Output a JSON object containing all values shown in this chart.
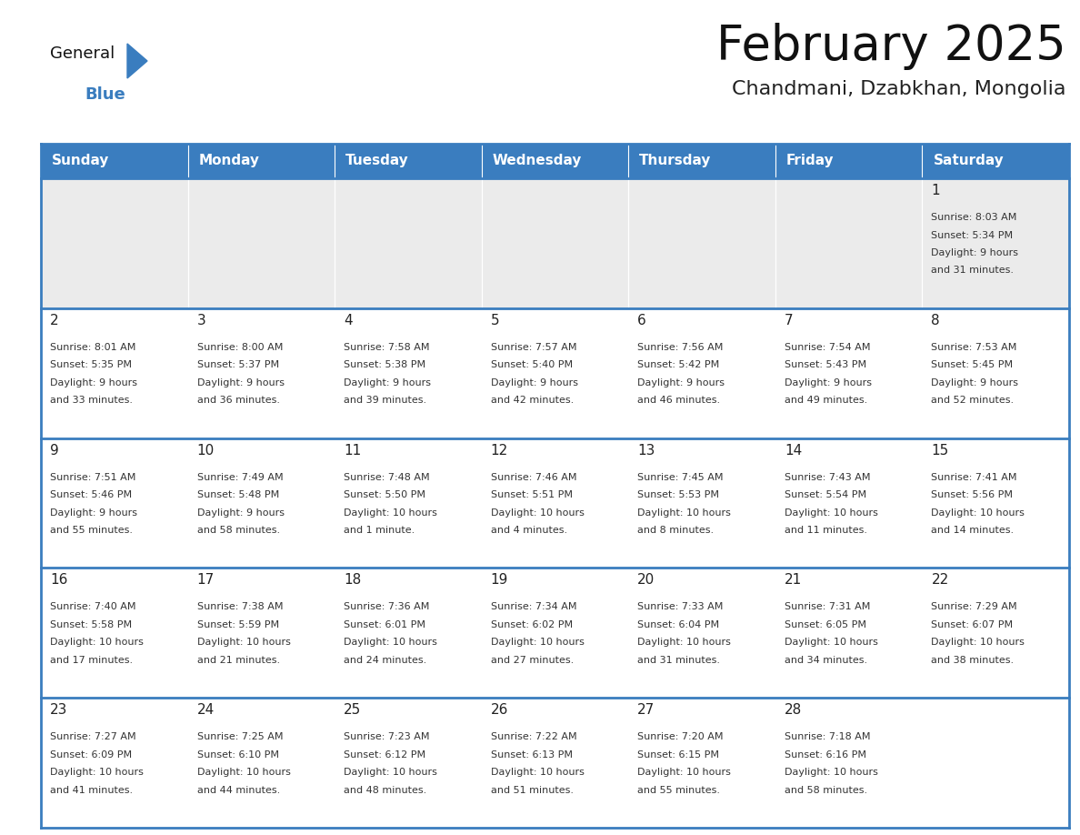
{
  "title": "February 2025",
  "subtitle": "Chandmani, Dzabkhan, Mongolia",
  "days_of_week": [
    "Sunday",
    "Monday",
    "Tuesday",
    "Wednesday",
    "Thursday",
    "Friday",
    "Saturday"
  ],
  "header_bg": "#3a7dbf",
  "header_text": "#ffffff",
  "cell_bg_gray": "#ebebeb",
  "cell_bg_white": "#ffffff",
  "separator_color": "#3a7dbf",
  "day_number_color": "#222222",
  "info_text_color": "#333333",
  "title_color": "#111111",
  "subtitle_color": "#222222",
  "border_color": "#3a7dbf",
  "calendar_data": [
    [
      {
        "day": null,
        "sunrise": null,
        "sunset": null,
        "daylight": null
      },
      {
        "day": null,
        "sunrise": null,
        "sunset": null,
        "daylight": null
      },
      {
        "day": null,
        "sunrise": null,
        "sunset": null,
        "daylight": null
      },
      {
        "day": null,
        "sunrise": null,
        "sunset": null,
        "daylight": null
      },
      {
        "day": null,
        "sunrise": null,
        "sunset": null,
        "daylight": null
      },
      {
        "day": null,
        "sunrise": null,
        "sunset": null,
        "daylight": null
      },
      {
        "day": 1,
        "sunrise": "8:03 AM",
        "sunset": "5:34 PM",
        "daylight": "9 hours\nand 31 minutes."
      }
    ],
    [
      {
        "day": 2,
        "sunrise": "8:01 AM",
        "sunset": "5:35 PM",
        "daylight": "9 hours\nand 33 minutes."
      },
      {
        "day": 3,
        "sunrise": "8:00 AM",
        "sunset": "5:37 PM",
        "daylight": "9 hours\nand 36 minutes."
      },
      {
        "day": 4,
        "sunrise": "7:58 AM",
        "sunset": "5:38 PM",
        "daylight": "9 hours\nand 39 minutes."
      },
      {
        "day": 5,
        "sunrise": "7:57 AM",
        "sunset": "5:40 PM",
        "daylight": "9 hours\nand 42 minutes."
      },
      {
        "day": 6,
        "sunrise": "7:56 AM",
        "sunset": "5:42 PM",
        "daylight": "9 hours\nand 46 minutes."
      },
      {
        "day": 7,
        "sunrise": "7:54 AM",
        "sunset": "5:43 PM",
        "daylight": "9 hours\nand 49 minutes."
      },
      {
        "day": 8,
        "sunrise": "7:53 AM",
        "sunset": "5:45 PM",
        "daylight": "9 hours\nand 52 minutes."
      }
    ],
    [
      {
        "day": 9,
        "sunrise": "7:51 AM",
        "sunset": "5:46 PM",
        "daylight": "9 hours\nand 55 minutes."
      },
      {
        "day": 10,
        "sunrise": "7:49 AM",
        "sunset": "5:48 PM",
        "daylight": "9 hours\nand 58 minutes."
      },
      {
        "day": 11,
        "sunrise": "7:48 AM",
        "sunset": "5:50 PM",
        "daylight": "10 hours\nand 1 minute."
      },
      {
        "day": 12,
        "sunrise": "7:46 AM",
        "sunset": "5:51 PM",
        "daylight": "10 hours\nand 4 minutes."
      },
      {
        "day": 13,
        "sunrise": "7:45 AM",
        "sunset": "5:53 PM",
        "daylight": "10 hours\nand 8 minutes."
      },
      {
        "day": 14,
        "sunrise": "7:43 AM",
        "sunset": "5:54 PM",
        "daylight": "10 hours\nand 11 minutes."
      },
      {
        "day": 15,
        "sunrise": "7:41 AM",
        "sunset": "5:56 PM",
        "daylight": "10 hours\nand 14 minutes."
      }
    ],
    [
      {
        "day": 16,
        "sunrise": "7:40 AM",
        "sunset": "5:58 PM",
        "daylight": "10 hours\nand 17 minutes."
      },
      {
        "day": 17,
        "sunrise": "7:38 AM",
        "sunset": "5:59 PM",
        "daylight": "10 hours\nand 21 minutes."
      },
      {
        "day": 18,
        "sunrise": "7:36 AM",
        "sunset": "6:01 PM",
        "daylight": "10 hours\nand 24 minutes."
      },
      {
        "day": 19,
        "sunrise": "7:34 AM",
        "sunset": "6:02 PM",
        "daylight": "10 hours\nand 27 minutes."
      },
      {
        "day": 20,
        "sunrise": "7:33 AM",
        "sunset": "6:04 PM",
        "daylight": "10 hours\nand 31 minutes."
      },
      {
        "day": 21,
        "sunrise": "7:31 AM",
        "sunset": "6:05 PM",
        "daylight": "10 hours\nand 34 minutes."
      },
      {
        "day": 22,
        "sunrise": "7:29 AM",
        "sunset": "6:07 PM",
        "daylight": "10 hours\nand 38 minutes."
      }
    ],
    [
      {
        "day": 23,
        "sunrise": "7:27 AM",
        "sunset": "6:09 PM",
        "daylight": "10 hours\nand 41 minutes."
      },
      {
        "day": 24,
        "sunrise": "7:25 AM",
        "sunset": "6:10 PM",
        "daylight": "10 hours\nand 44 minutes."
      },
      {
        "day": 25,
        "sunrise": "7:23 AM",
        "sunset": "6:12 PM",
        "daylight": "10 hours\nand 48 minutes."
      },
      {
        "day": 26,
        "sunrise": "7:22 AM",
        "sunset": "6:13 PM",
        "daylight": "10 hours\nand 51 minutes."
      },
      {
        "day": 27,
        "sunrise": "7:20 AM",
        "sunset": "6:15 PM",
        "daylight": "10 hours\nand 55 minutes."
      },
      {
        "day": 28,
        "sunrise": "7:18 AM",
        "sunset": "6:16 PM",
        "daylight": "10 hours\nand 58 minutes."
      },
      {
        "day": null,
        "sunrise": null,
        "sunset": null,
        "daylight": null
      }
    ]
  ],
  "logo_text_general": "General",
  "logo_text_blue": "Blue",
  "logo_color_general": "#111111",
  "logo_color_blue": "#3a7dbf",
  "logo_triangle_color": "#3a7dbf",
  "figsize": [
    11.88,
    9.18
  ],
  "dpi": 100
}
